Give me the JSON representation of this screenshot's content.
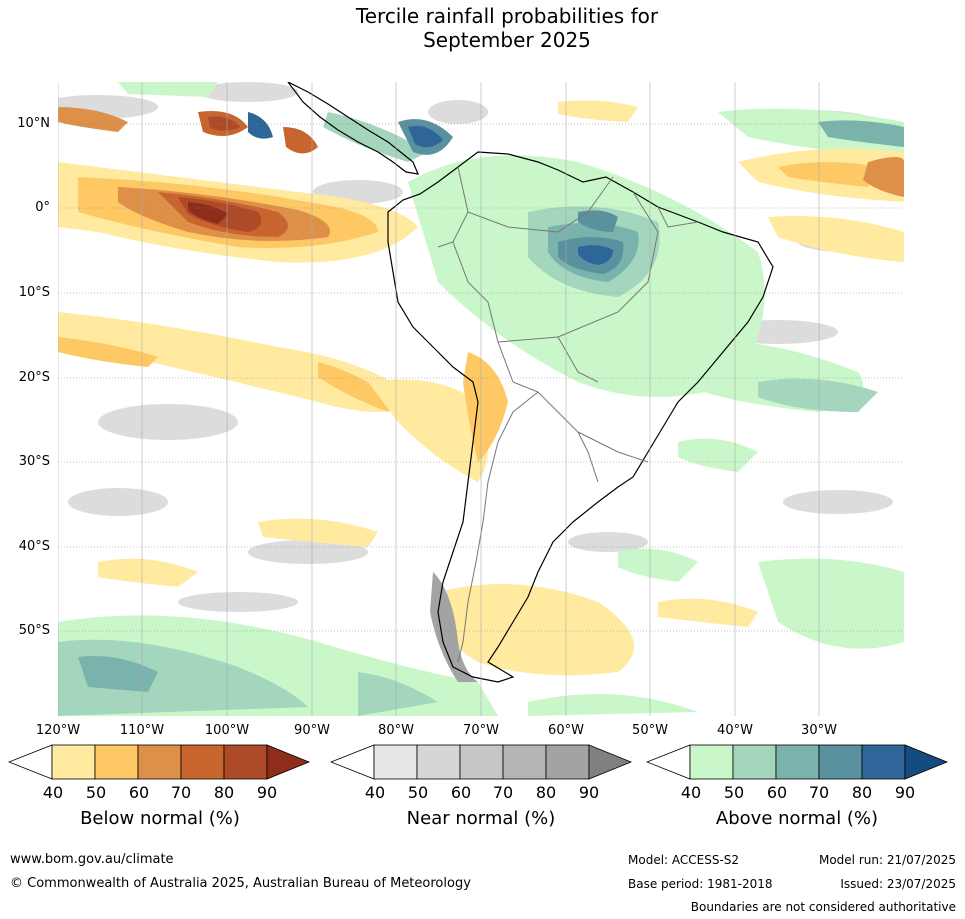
{
  "title_line1": "Tercile rainfall probabilities for",
  "title_line2": "September 2025",
  "lat_labels": [
    "10°N",
    "0°",
    "10°S",
    "20°S",
    "30°S",
    "40°S",
    "50°S"
  ],
  "lon_labels": [
    "120°W",
    "110°W",
    "100°W",
    "90°W",
    "80°W",
    "70°W",
    "60°W",
    "50°W",
    "40°W",
    "30°W"
  ],
  "colorbars": {
    "below": {
      "title": "Below normal (%)",
      "ticks": [
        "40",
        "50",
        "60",
        "70",
        "80",
        "90"
      ],
      "colors": [
        "#ffffff",
        "#ffeaa0",
        "#fec965",
        "#df9048",
        "#c8652f",
        "#ad4a27",
        "#8e2e1a"
      ]
    },
    "near": {
      "title": "Near normal (%)",
      "ticks": [
        "40",
        "50",
        "60",
        "70",
        "80",
        "90"
      ],
      "colors": [
        "#ffffff",
        "#e6e6e6",
        "#d6d6d6",
        "#c6c6c6",
        "#b5b5b5",
        "#a3a3a3",
        "#808080"
      ]
    },
    "above": {
      "title": "Above normal (%)",
      "ticks": [
        "40",
        "50",
        "60",
        "70",
        "80",
        "90"
      ],
      "colors": [
        "#ffffff",
        "#c9f7c9",
        "#a3d6bc",
        "#7ab3ab",
        "#5a919e",
        "#2e6699",
        "#154c80"
      ]
    }
  },
  "footer": {
    "website": "www.bom.gov.au/climate",
    "copyright": "© Commonwealth of Australia 2025, Australian Bureau of Meteorology",
    "model": "Model: ACCESS-S2",
    "base_period": "Base period: 1981-2018",
    "model_run": "Model run: 21/07/2025",
    "issued": "Issued: 23/07/2025",
    "disclaimer": "Boundaries are not considered authoritative"
  }
}
